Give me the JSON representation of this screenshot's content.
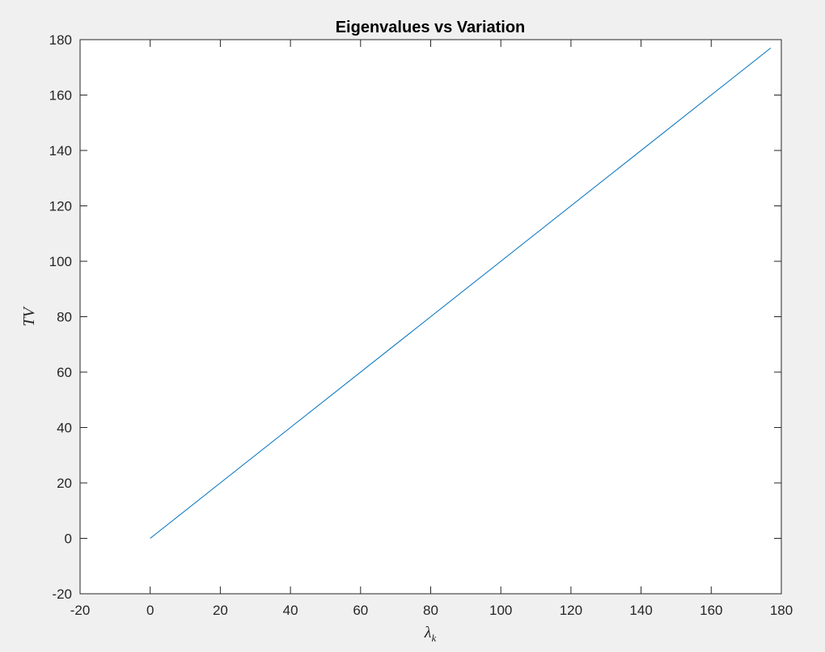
{
  "chart_data": {
    "type": "line",
    "title": "Eigenvalues vs Variation",
    "xlabel": "λ",
    "xlabel_subscript": "k",
    "ylabel": "TV",
    "xlim": [
      -20,
      180
    ],
    "ylim": [
      -20,
      180
    ],
    "xticks": [
      "-20",
      "0",
      "20",
      "40",
      "60",
      "80",
      "100",
      "120",
      "140",
      "160",
      "180"
    ],
    "yticks": [
      "-20",
      "0",
      "20",
      "40",
      "60",
      "80",
      "100",
      "120",
      "140",
      "160",
      "180"
    ],
    "grid": false,
    "series": [
      {
        "color": "#0072bd",
        "x": [
          0,
          177
        ],
        "y": [
          0,
          177
        ]
      }
    ]
  }
}
